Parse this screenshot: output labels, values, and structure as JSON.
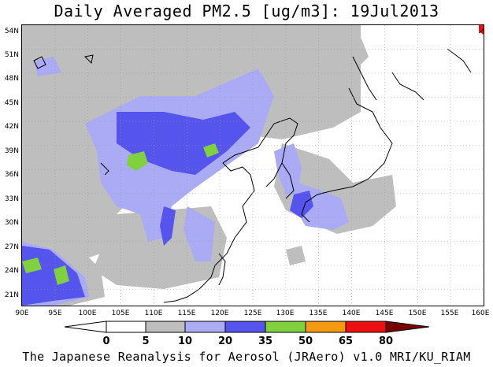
{
  "title": "Daily Averaged PM2.5 [ug/m3]: 19Jul2013",
  "footer": "The Japanese Reanalysis for Aerosol (JRAero) v1.0 MRI/KU_RIAM",
  "map": {
    "lon_range": [
      90,
      160
    ],
    "lat_range": [
      20,
      55
    ],
    "lon_labels": [
      "90E",
      "95E",
      "100E",
      "105E",
      "110E",
      "115E",
      "120E",
      "125E",
      "130E",
      "135E",
      "140E",
      "145E",
      "150E",
      "155E",
      "160E"
    ],
    "lat_labels": [
      "21N",
      "24N",
      "27N",
      "30N",
      "33N",
      "36N",
      "39N",
      "42N",
      "45N",
      "48N",
      "51N",
      "54N"
    ]
  },
  "colorbar": {
    "labels": [
      "0",
      "5",
      "10",
      "20",
      "35",
      "50",
      "65",
      "80"
    ],
    "colors": [
      "#ffffff",
      "#bebebe",
      "#aaaaf5",
      "#5555ee",
      "#80d040",
      "#f59a10",
      "#ee1010",
      "#7a0000"
    ]
  }
}
